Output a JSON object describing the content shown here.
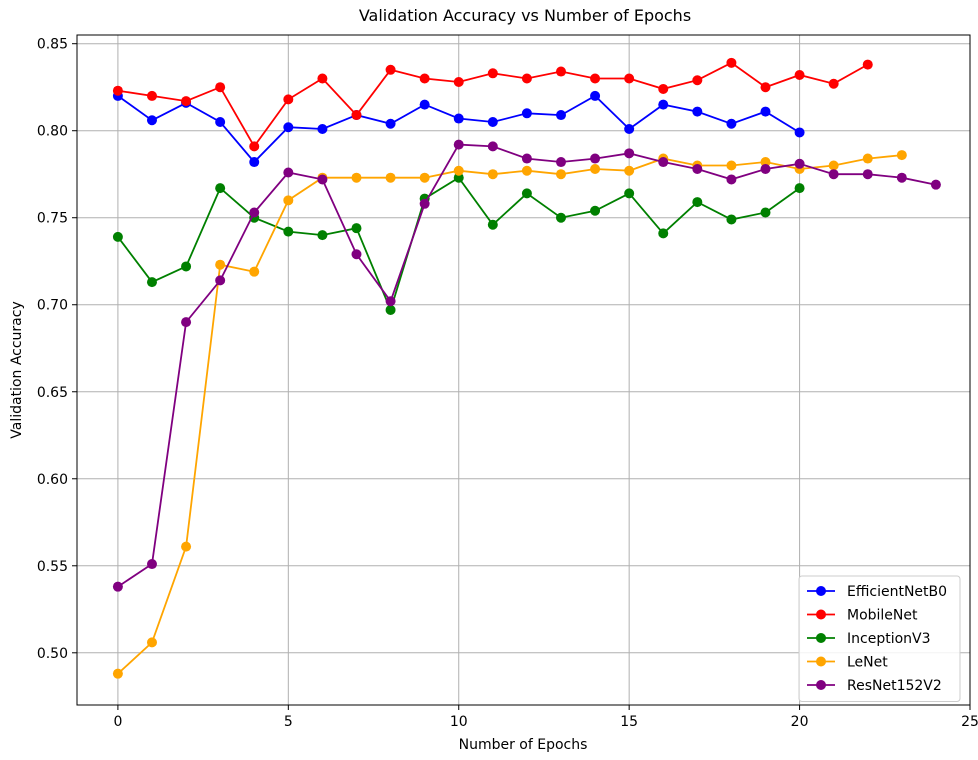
{
  "chart_data": {
    "type": "line",
    "title": "Validation Accuracy vs Number of Epochs",
    "xlabel": "Number of Epochs",
    "ylabel": "Validation Accuracy",
    "xlim": [
      -1.2,
      25
    ],
    "ylim": [
      0.47,
      0.855
    ],
    "xticks": [
      0,
      5,
      10,
      15,
      20,
      25
    ],
    "yticks": [
      0.5,
      0.55,
      0.6,
      0.65,
      0.7,
      0.75,
      0.8,
      0.85
    ],
    "xtick_labels": [
      "0",
      "5",
      "10",
      "15",
      "20",
      "25"
    ],
    "ytick_labels": [
      "0.50",
      "0.55",
      "0.60",
      "0.65",
      "0.70",
      "0.75",
      "0.80",
      "0.85"
    ],
    "grid": true,
    "legend_position": "bottom-right",
    "series": [
      {
        "name": "EfficientNetB0",
        "color": "#0000ff",
        "x": [
          0,
          1,
          2,
          3,
          4,
          5,
          6,
          7,
          8,
          9,
          10,
          11,
          12,
          13,
          14,
          15,
          16,
          17,
          18,
          19,
          20
        ],
        "values": [
          0.82,
          0.806,
          0.816,
          0.805,
          0.782,
          0.802,
          0.801,
          0.809,
          0.804,
          0.815,
          0.807,
          0.805,
          0.81,
          0.809,
          0.82,
          0.801,
          0.815,
          0.811,
          0.804,
          0.811,
          0.799
        ]
      },
      {
        "name": "MobileNet",
        "color": "#ff0000",
        "x": [
          0,
          1,
          2,
          3,
          4,
          5,
          6,
          7,
          8,
          9,
          10,
          11,
          12,
          13,
          14,
          15,
          16,
          17,
          18,
          19,
          20,
          21,
          22
        ],
        "values": [
          0.823,
          0.82,
          0.817,
          0.825,
          0.791,
          0.818,
          0.83,
          0.809,
          0.835,
          0.83,
          0.828,
          0.833,
          0.83,
          0.834,
          0.83,
          0.83,
          0.824,
          0.829,
          0.839,
          0.825,
          0.832,
          0.827,
          0.838
        ]
      },
      {
        "name": "InceptionV3",
        "color": "#008000",
        "x": [
          0,
          1,
          2,
          3,
          4,
          5,
          6,
          7,
          8,
          9,
          10,
          11,
          12,
          13,
          14,
          15,
          16,
          17,
          18,
          19,
          20
        ],
        "values": [
          0.739,
          0.713,
          0.722,
          0.767,
          0.75,
          0.742,
          0.74,
          0.744,
          0.697,
          0.761,
          0.773,
          0.746,
          0.764,
          0.75,
          0.754,
          0.764,
          0.741,
          0.759,
          0.749,
          0.753,
          0.767
        ]
      },
      {
        "name": "LeNet",
        "color": "#ffa500",
        "x": [
          0,
          1,
          2,
          3,
          4,
          5,
          6,
          7,
          8,
          9,
          10,
          11,
          12,
          13,
          14,
          15,
          16,
          17,
          18,
          19,
          20,
          21,
          22,
          23
        ],
        "values": [
          0.488,
          0.506,
          0.561,
          0.723,
          0.719,
          0.76,
          0.773,
          0.773,
          0.773,
          0.773,
          0.777,
          0.775,
          0.777,
          0.775,
          0.778,
          0.777,
          0.784,
          0.78,
          0.78,
          0.782,
          0.778,
          0.78,
          0.784,
          0.786
        ]
      },
      {
        "name": "ResNet152V2",
        "color": "#800080",
        "x": [
          0,
          1,
          2,
          3,
          4,
          5,
          6,
          7,
          8,
          9,
          10,
          11,
          12,
          13,
          14,
          15,
          16,
          17,
          18,
          19,
          20,
          21,
          22,
          23,
          24
        ],
        "values": [
          0.538,
          0.551,
          0.69,
          0.714,
          0.753,
          0.776,
          0.772,
          0.729,
          0.702,
          0.758,
          0.792,
          0.791,
          0.784,
          0.782,
          0.784,
          0.787,
          0.782,
          0.778,
          0.772,
          0.778,
          0.781,
          0.775,
          0.775,
          0.773,
          0.769
        ]
      }
    ]
  }
}
